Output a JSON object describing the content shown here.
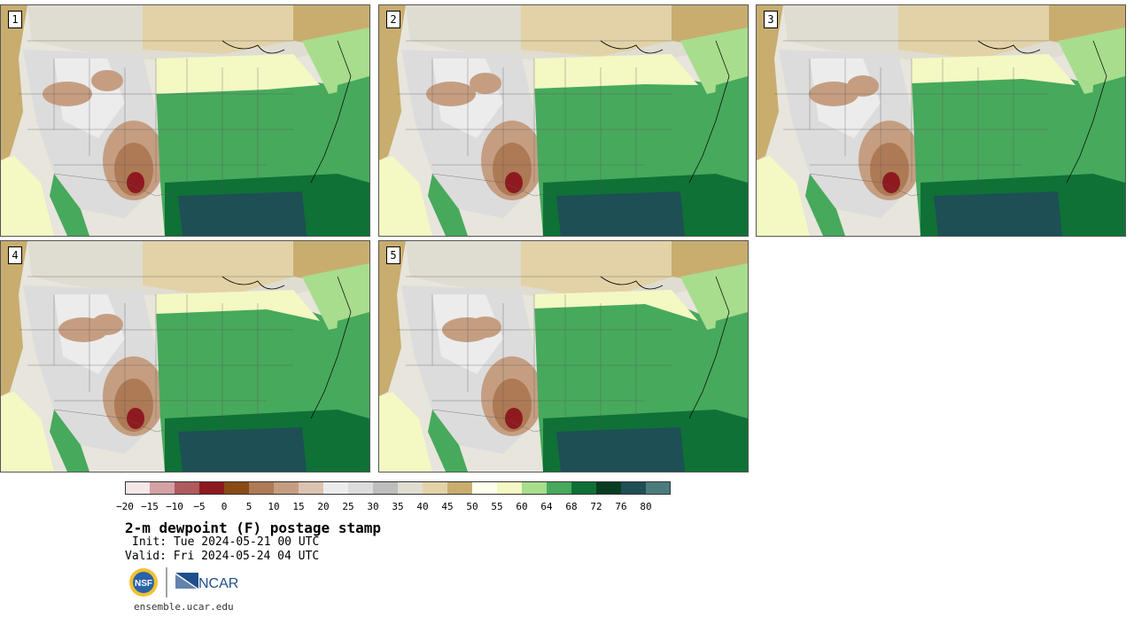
{
  "panels": [
    {
      "label": "1",
      "variant": 0
    },
    {
      "label": "2",
      "variant": 1
    },
    {
      "label": "3",
      "variant": 2
    },
    {
      "label": "4",
      "variant": 3
    },
    {
      "label": "5",
      "variant": 4
    }
  ],
  "colorbar": {
    "colors": [
      "#f5e7e7",
      "#d4a1a4",
      "#b05a5e",
      "#8e1a20",
      "#8a4a15",
      "#ad7a55",
      "#c59e82",
      "#dcc3b0",
      "#ececec",
      "#dcdcdc",
      "#bdbdbd",
      "#dfdcd2",
      "#e3d2a7",
      "#c8ad6f",
      "#ffffee",
      "#f4f8c3",
      "#a8dd8d",
      "#47a95c",
      "#0f7136",
      "#083d22",
      "#1d4f55",
      "#4a7c7d"
    ],
    "ticks": [
      "−20",
      "−15",
      "−10",
      "−5",
      "0",
      "5",
      "10",
      "15",
      "20",
      "25",
      "30",
      "35",
      "40",
      "45",
      "50",
      "55",
      "60",
      "64",
      "68",
      "72",
      "76",
      "80"
    ]
  },
  "title": "2-m dewpoint (F) postage stamp",
  "init": "Init: Tue 2024-05-21 00 UTC",
  "valid": "Valid: Fri 2024-05-24 04 UTC",
  "logos": {
    "nsf": "NSF",
    "ncar": "NCAR"
  },
  "site": "ensemble.ucar.edu"
}
